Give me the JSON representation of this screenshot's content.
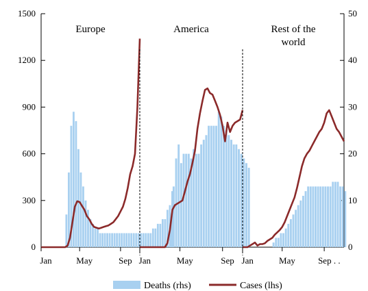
{
  "chart_data": {
    "type": "bar+line",
    "colors": {
      "bars": "#a8d0f0",
      "line": "#8b2a2a"
    },
    "left_axis": {
      "range": [
        0,
        1500
      ],
      "ticks": [
        "0",
        "300",
        "600",
        "900",
        "1200",
        "1500"
      ]
    },
    "right_axis": {
      "range": [
        0,
        50
      ],
      "ticks": [
        "0",
        "10",
        "20",
        "30",
        "40",
        "50"
      ]
    },
    "legend": {
      "position": "bottom",
      "items": [
        {
          "label": "Deaths (rhs)",
          "kind": "bar"
        },
        {
          "label": "Cases (lhs)",
          "kind": "line"
        }
      ]
    },
    "panels": [
      {
        "name": "Europe",
        "name_lines": [
          "Europe"
        ],
        "x_ticks": [
          "Jan",
          "May",
          "Sep"
        ],
        "deaths_start_week": 10,
        "deaths": [
          7,
          16,
          26,
          29,
          27,
          21,
          16,
          13,
          10,
          8,
          6,
          5,
          4,
          4,
          3,
          3,
          3,
          3,
          3,
          3,
          3,
          3,
          3,
          3,
          3,
          3,
          3,
          3,
          3,
          3,
          3,
          3,
          3,
          3,
          3,
          3,
          4,
          4,
          5,
          5,
          6,
          6,
          8,
          9,
          12
        ],
        "cases": [
          [
            0,
            0
          ],
          [
            10,
            0
          ],
          [
            11,
            10
          ],
          [
            12,
            60
          ],
          [
            13,
            160
          ],
          [
            14,
            260
          ],
          [
            15,
            295
          ],
          [
            16,
            290
          ],
          [
            17,
            265
          ],
          [
            18,
            240
          ],
          [
            19,
            200
          ],
          [
            20,
            180
          ],
          [
            21,
            150
          ],
          [
            22,
            130
          ],
          [
            23,
            125
          ],
          [
            24,
            120
          ],
          [
            25,
            125
          ],
          [
            26,
            130
          ],
          [
            27,
            135
          ],
          [
            28,
            140
          ],
          [
            29,
            150
          ],
          [
            30,
            160
          ],
          [
            31,
            180
          ],
          [
            32,
            200
          ],
          [
            33,
            230
          ],
          [
            34,
            260
          ],
          [
            35,
            310
          ],
          [
            36,
            380
          ],
          [
            37,
            470
          ],
          [
            38,
            520
          ],
          [
            39,
            600
          ],
          [
            40,
            900
          ],
          [
            41,
            1340
          ]
        ]
      },
      {
        "name": "America",
        "name_lines": [
          "America"
        ],
        "x_ticks": [
          "Jan",
          "May",
          "Sep"
        ],
        "deaths_start_week": 12,
        "deaths": [
          6,
          13,
          19,
          22,
          18,
          20,
          20,
          20,
          19,
          21,
          20,
          20,
          22,
          23,
          24,
          26,
          26,
          26,
          26,
          29,
          28,
          26,
          25,
          24,
          23,
          22,
          22,
          21,
          20,
          19,
          18,
          17
        ],
        "cases": [
          [
            0,
            0
          ],
          [
            10,
            0
          ],
          [
            11,
            25
          ],
          [
            12,
            110
          ],
          [
            13,
            240
          ],
          [
            14,
            270
          ],
          [
            15,
            280
          ],
          [
            16,
            290
          ],
          [
            17,
            300
          ],
          [
            18,
            360
          ],
          [
            19,
            420
          ],
          [
            20,
            470
          ],
          [
            21,
            540
          ],
          [
            22,
            620
          ],
          [
            23,
            760
          ],
          [
            24,
            860
          ],
          [
            25,
            940
          ],
          [
            26,
            1010
          ],
          [
            27,
            1020
          ],
          [
            28,
            990
          ],
          [
            29,
            980
          ],
          [
            30,
            940
          ],
          [
            31,
            900
          ],
          [
            32,
            850
          ],
          [
            33,
            780
          ],
          [
            34,
            680
          ],
          [
            35,
            800
          ],
          [
            36,
            740
          ],
          [
            37,
            780
          ],
          [
            38,
            800
          ],
          [
            39,
            810
          ],
          [
            40,
            820
          ],
          [
            41,
            880
          ]
        ]
      },
      {
        "name": "Rest of the world",
        "name_lines": [
          "Rest of the",
          "world"
        ],
        "x_ticks": [
          "Jan",
          "May",
          "Sep . ."
        ],
        "deaths_start_week": 12,
        "deaths": [
          1,
          2,
          2,
          3,
          3,
          4,
          5,
          6,
          7,
          8,
          9,
          10,
          11,
          12,
          13,
          13,
          13,
          13,
          13,
          13,
          13,
          13,
          13,
          13,
          14,
          14,
          14,
          13,
          13,
          12
        ],
        "cases": [
          [
            0,
            0
          ],
          [
            2,
            0
          ],
          [
            3,
            10
          ],
          [
            4,
            20
          ],
          [
            5,
            30
          ],
          [
            6,
            10
          ],
          [
            7,
            20
          ],
          [
            8,
            20
          ],
          [
            9,
            25
          ],
          [
            10,
            40
          ],
          [
            11,
            50
          ],
          [
            12,
            60
          ],
          [
            13,
            80
          ],
          [
            14,
            95
          ],
          [
            15,
            110
          ],
          [
            16,
            130
          ],
          [
            17,
            160
          ],
          [
            18,
            200
          ],
          [
            19,
            240
          ],
          [
            20,
            280
          ],
          [
            21,
            320
          ],
          [
            22,
            380
          ],
          [
            23,
            450
          ],
          [
            24,
            520
          ],
          [
            25,
            570
          ],
          [
            26,
            600
          ],
          [
            27,
            620
          ],
          [
            28,
            650
          ],
          [
            29,
            680
          ],
          [
            30,
            710
          ],
          [
            31,
            740
          ],
          [
            32,
            760
          ],
          [
            33,
            800
          ],
          [
            34,
            860
          ],
          [
            35,
            880
          ],
          [
            36,
            840
          ],
          [
            37,
            800
          ],
          [
            38,
            760
          ],
          [
            39,
            740
          ],
          [
            40,
            710
          ],
          [
            41,
            680
          ]
        ]
      }
    ]
  }
}
